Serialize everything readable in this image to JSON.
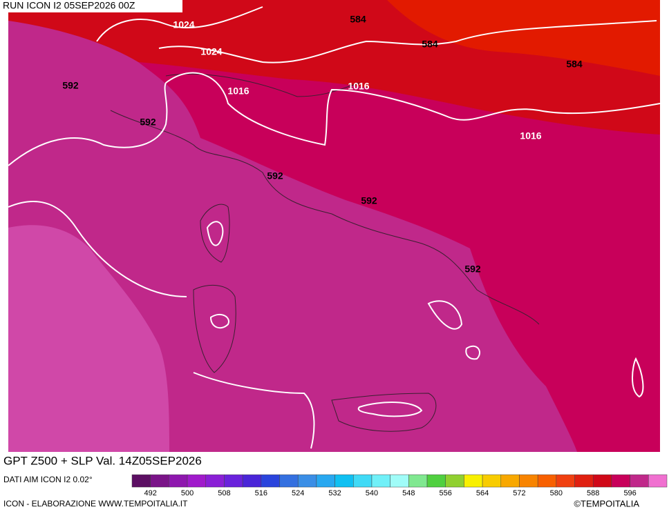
{
  "header": {
    "run": "RUN ICON I2 05SEP2026 00Z"
  },
  "contour_labels": [
    "1024",
    "584",
    "1024",
    "584",
    "584",
    "592",
    "1016",
    "1016",
    "592",
    "1016",
    "592",
    "592",
    "592"
  ],
  "footer": {
    "title": "GPT Z500 + SLP Val. 14Z05SEP2026",
    "source": "DATI AIM ICON I2 0.02°",
    "credit": "ICON - ELABORAZIONE WWW.TEMPOITALIA.IT",
    "copyright": "©TEMPOITALIA"
  },
  "colorbar": {
    "colors": [
      "#5c0f63",
      "#7a1488",
      "#8e17ae",
      "#a01acb",
      "#8a1fd6",
      "#6a22dc",
      "#4a25d8",
      "#2a44dc",
      "#3470e0",
      "#3a8ee6",
      "#28a8f0",
      "#10c0f2",
      "#40daf6",
      "#70f0f8",
      "#a0fcf8",
      "#80e890",
      "#50d040",
      "#90d030",
      "#f8f000",
      "#f8cc00",
      "#f8a800",
      "#f88400",
      "#f86000",
      "#f04010",
      "#e02010",
      "#d00818",
      "#c8005a",
      "#c0288a",
      "#f070d0"
    ],
    "labels": [
      492,
      500,
      508,
      516,
      524,
      532,
      540,
      548,
      556,
      564,
      572,
      580,
      588,
      596
    ]
  }
}
